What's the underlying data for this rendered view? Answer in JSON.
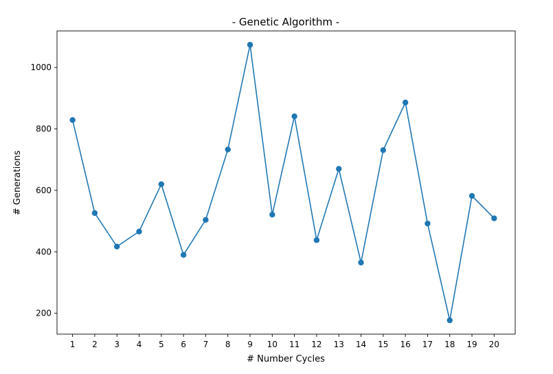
{
  "chart_data": {
    "type": "line",
    "title": "- Genetic Algorithm -",
    "xlabel": "# Number Cycles",
    "ylabel": "# Generations",
    "x": [
      1,
      2,
      3,
      4,
      5,
      6,
      7,
      8,
      9,
      10,
      11,
      12,
      13,
      14,
      15,
      16,
      17,
      18,
      19,
      20
    ],
    "series": [
      {
        "values": [
          829,
          526,
          417,
          466,
          620,
          390,
          504,
          733,
          1074,
          521,
          841,
          438,
          670,
          365,
          731,
          886,
          492,
          177,
          582,
          509
        ],
        "color": "#1f77b4",
        "marker": "circle"
      }
    ],
    "xlim": [
      0.3,
      20.95
    ],
    "ylim": [
      132,
      1119
    ],
    "xticks": [
      1,
      2,
      3,
      4,
      5,
      6,
      7,
      8,
      9,
      10,
      11,
      12,
      13,
      14,
      15,
      16,
      17,
      18,
      19,
      20
    ],
    "yticks": [
      200,
      400,
      600,
      800,
      1000
    ],
    "grid": false,
    "legend": "none"
  }
}
